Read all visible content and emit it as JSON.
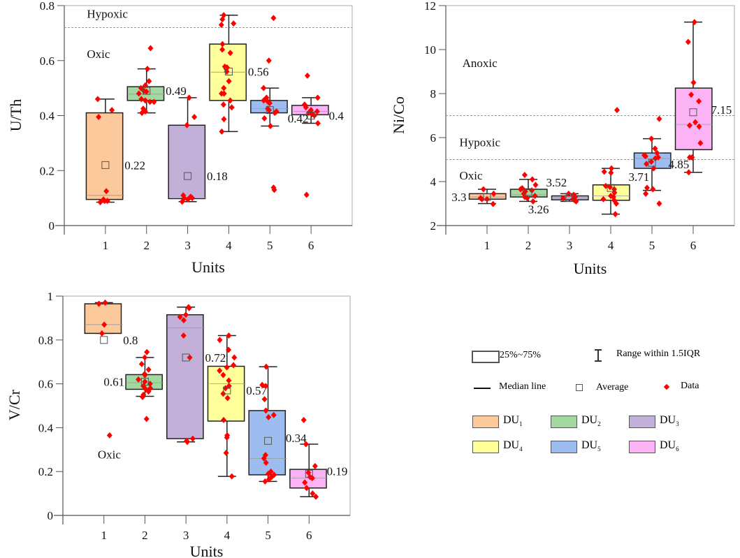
{
  "chart_data": [
    {
      "type": "box",
      "id": "uth",
      "ylabel": "U/Th",
      "xlabel": "Units",
      "categories": [
        "1",
        "2",
        "3",
        "4",
        "5",
        "6"
      ],
      "xlim": [
        0,
        7
      ],
      "ylim": [
        0,
        0.8
      ],
      "yticks": [
        0,
        0.2,
        0.4,
        0.6,
        0.8
      ],
      "ytick_labels": [
        "0",
        "0.2",
        "0.4",
        "0.6",
        "0.8"
      ],
      "thresholds": [
        0.72
      ],
      "zones": [
        {
          "label": "Hypoxic",
          "x": 0.55,
          "y": 0.755
        },
        {
          "label": "Oxic",
          "x": 0.55,
          "y": 0.61
        }
      ],
      "boxes": [
        {
          "unit": "DU1",
          "q1": 0.095,
          "q3": 0.41,
          "median": 0.11,
          "mean": 0.22,
          "whisker_low": 0.085,
          "whisker_high": 0.46,
          "mean_label": "0.22",
          "points": [
            0.46,
            0.42,
            0.395,
            0.125,
            0.095,
            0.09,
            0.09,
            0.085
          ]
        },
        {
          "unit": "DU2",
          "q1": 0.455,
          "q3": 0.505,
          "median": 0.478,
          "mean": 0.49,
          "whisker_low": 0.41,
          "whisker_high": 0.57,
          "mean_label": "0.49",
          "points": [
            0.645,
            0.57,
            0.525,
            0.51,
            0.5,
            0.49,
            0.487,
            0.48,
            0.46,
            0.455,
            0.45,
            0.45,
            0.425,
            0.415,
            0.41
          ]
        },
        {
          "unit": "DU3",
          "q1": 0.098,
          "q3": 0.365,
          "median": 0.1,
          "mean": 0.18,
          "whisker_low": 0.087,
          "whisker_high": 0.465,
          "mean_label": "0.18",
          "points": [
            0.465,
            0.395,
            0.365,
            0.11,
            0.105,
            0.1,
            0.1,
            0.095,
            0.087
          ]
        },
        {
          "unit": "DU4",
          "q1": 0.455,
          "q3": 0.66,
          "median": 0.558,
          "mean": 0.56,
          "whisker_low": 0.342,
          "whisker_high": 0.765,
          "mean_label": "0.56",
          "points": [
            0.765,
            0.75,
            0.735,
            0.73,
            0.66,
            0.64,
            0.628,
            0.578,
            0.575,
            0.57,
            0.56,
            0.525,
            0.5,
            0.48,
            0.48,
            0.455,
            0.44,
            0.43,
            0.387,
            0.342
          ]
        },
        {
          "unit": "DU5",
          "q1": 0.41,
          "q3": 0.455,
          "median": 0.425,
          "mean": 0.42,
          "whisker_low": 0.362,
          "whisker_high": 0.5,
          "mean_label": "0.42",
          "points": [
            0.755,
            0.6,
            0.5,
            0.465,
            0.455,
            0.45,
            0.445,
            0.425,
            0.42,
            0.415,
            0.41,
            0.39,
            0.362,
            0.138,
            0.13
          ]
        },
        {
          "unit": "DU6",
          "q1": 0.403,
          "q3": 0.437,
          "median": 0.415,
          "mean": 0.4,
          "whisker_low": 0.372,
          "whisker_high": 0.465,
          "mean_label": "0.4",
          "points": [
            0.545,
            0.465,
            0.44,
            0.43,
            0.42,
            0.415,
            0.41,
            0.405,
            0.4,
            0.372,
            0.112
          ]
        }
      ]
    },
    {
      "type": "box",
      "id": "nico",
      "ylabel": "Ni/Co",
      "xlabel": "Units",
      "categories": [
        "1",
        "2",
        "3",
        "4",
        "5",
        "6"
      ],
      "xlim": [
        0,
        7
      ],
      "ylim": [
        2,
        12
      ],
      "yticks": [
        2,
        4,
        6,
        8,
        10,
        12
      ],
      "ytick_labels": [
        "2",
        "4",
        "6",
        "8",
        "10",
        "12"
      ],
      "thresholds": [
        5,
        7
      ],
      "zones": [
        {
          "label": "Anoxic",
          "x": 0.4,
          "y": 9.2
        },
        {
          "label": "Hypoxic",
          "x": 0.33,
          "y": 5.6
        },
        {
          "label": "Oxic",
          "x": 0.33,
          "y": 4.1
        }
      ],
      "boxes": [
        {
          "unit": "DU1",
          "q1": 3.2,
          "q3": 3.45,
          "median": 3.3,
          "mean": 3.3,
          "whisker_low": 3.0,
          "whisker_high": 3.65,
          "mean_label": "3.3",
          "points": [
            3.65,
            3.45,
            3.25,
            3.2,
            3.2,
            2.98
          ]
        },
        {
          "unit": "DU2",
          "q1": 3.3,
          "q3": 3.65,
          "median": 3.4,
          "mean": 3.52,
          "whisker_low": 3.1,
          "whisker_high": 4.1,
          "mean_label": "3.52",
          "points": [
            4.3,
            4.1,
            3.85,
            3.7,
            3.65,
            3.6,
            3.55,
            3.45,
            3.35,
            3.3,
            3.25,
            3.1
          ]
        },
        {
          "unit": "DU3",
          "q1": 3.17,
          "q3": 3.35,
          "median": 3.25,
          "mean": 3.26,
          "whisker_low": 3.1,
          "whisker_high": 3.45,
          "mean_label": "3.26",
          "points": [
            3.45,
            3.4,
            3.35,
            3.3,
            3.25,
            3.2,
            3.15,
            3.1
          ]
        },
        {
          "unit": "DU4",
          "q1": 3.15,
          "q3": 3.85,
          "median": 3.35,
          "mean": 3.71,
          "whisker_low": 2.52,
          "whisker_high": 4.6,
          "mean_label": "3.71",
          "points": [
            7.25,
            4.6,
            4.45,
            4.4,
            3.8,
            3.75,
            3.65,
            3.5,
            3.35,
            3.3,
            3.2,
            3.15,
            3.0,
            2.52
          ]
        },
        {
          "unit": "DU5",
          "q1": 4.6,
          "q3": 5.3,
          "median": 5.05,
          "mean": 4.85,
          "whisker_low": 3.6,
          "whisker_high": 5.95,
          "mean_label": "4.85",
          "points": [
            6.85,
            5.95,
            5.5,
            5.3,
            5.2,
            5.15,
            5.1,
            5.05,
            4.9,
            4.8,
            4.6,
            3.72,
            3.65,
            3.45,
            3.0
          ]
        },
        {
          "unit": "DU6",
          "q1": 5.45,
          "q3": 8.25,
          "median": 6.6,
          "mean": 7.15,
          "whisker_low": 4.42,
          "whisker_high": 11.25,
          "mean_label": "7.15",
          "points": [
            11.25,
            10.35,
            8.5,
            7.95,
            7.65,
            6.7,
            6.55,
            6.5,
            5.75,
            5.1,
            5.1,
            4.42
          ]
        }
      ]
    },
    {
      "type": "box",
      "id": "vcr",
      "ylabel": "V/Cr",
      "xlabel": "Units",
      "categories": [
        "1",
        "2",
        "3",
        "4",
        "5",
        "6"
      ],
      "xlim": [
        0,
        7
      ],
      "ylim": [
        0,
        1
      ],
      "yticks": [
        0,
        0.2,
        0.4,
        0.6,
        0.8,
        1
      ],
      "ytick_labels": [
        "0",
        "0.2",
        "0.4",
        "0.6",
        "0.8",
        "1"
      ],
      "thresholds": [],
      "zones": [
        {
          "label": "Oxic",
          "x": 0.85,
          "y": 0.26
        }
      ],
      "boxes": [
        {
          "unit": "DU1",
          "q1": 0.83,
          "q3": 0.965,
          "median": 0.87,
          "mean": 0.8,
          "whisker_low": 0.83,
          "whisker_high": 0.97,
          "mean_label": "0.8",
          "points": [
            0.97,
            0.965,
            0.87,
            0.83,
            0.365
          ]
        },
        {
          "unit": "DU2",
          "q1": 0.575,
          "q3": 0.642,
          "median": 0.605,
          "mean": 0.61,
          "whisker_low": 0.543,
          "whisker_high": 0.72,
          "mean_label": "0.61",
          "points": [
            0.745,
            0.72,
            0.69,
            0.665,
            0.645,
            0.64,
            0.62,
            0.61,
            0.6,
            0.59,
            0.58,
            0.575,
            0.565,
            0.55,
            0.54,
            0.44
          ]
        },
        {
          "unit": "DU3",
          "q1": 0.35,
          "q3": 0.915,
          "median": 0.855,
          "mean": 0.72,
          "whisker_low": 0.335,
          "whisker_high": 0.95,
          "mean_label": "0.72",
          "points": [
            0.95,
            0.945,
            0.915,
            0.905,
            0.89,
            0.82,
            0.72,
            0.35,
            0.34,
            0.335
          ]
        },
        {
          "unit": "DU4",
          "q1": 0.43,
          "q3": 0.68,
          "median": 0.6,
          "mean": 0.57,
          "whisker_low": 0.178,
          "whisker_high": 0.82,
          "mean_label": "0.57",
          "points": [
            0.82,
            0.8,
            0.755,
            0.72,
            0.685,
            0.675,
            0.66,
            0.64,
            0.615,
            0.59,
            0.58,
            0.555,
            0.535,
            0.435,
            0.365,
            0.355,
            0.285,
            0.178
          ]
        },
        {
          "unit": "DU5",
          "q1": 0.185,
          "q3": 0.478,
          "median": 0.26,
          "mean": 0.34,
          "whisker_low": 0.155,
          "whisker_high": 0.678,
          "mean_label": "0.34",
          "points": [
            0.678,
            0.595,
            0.59,
            0.53,
            0.478,
            0.458,
            0.448,
            0.275,
            0.26,
            0.24,
            0.2,
            0.19,
            0.185,
            0.175,
            0.165,
            0.155
          ]
        },
        {
          "unit": "DU6",
          "q1": 0.125,
          "q3": 0.21,
          "median": 0.17,
          "mean": 0.19,
          "whisker_low": 0.085,
          "whisker_high": 0.325,
          "mean_label": "0.19",
          "points": [
            0.435,
            0.325,
            0.225,
            0.195,
            0.175,
            0.17,
            0.15,
            0.125,
            0.1,
            0.085
          ]
        }
      ]
    }
  ],
  "colors": {
    "DU1": "#fcc99c",
    "DU2": "#a2d9a0",
    "DU3": "#c3b0d8",
    "DU4": "#ffff9c",
    "DU5": "#9dbcf0",
    "DU6": "#fcb3f6",
    "data": "#ff0000",
    "threshold": "#999999"
  },
  "legend": {
    "box_label": "25%~75%",
    "range_label": "Range within 1.5IQR",
    "median_label": "Median line",
    "average_label": "Average",
    "data_label": "Data",
    "units": [
      {
        "key": "DU1",
        "base": "DU",
        "sub": "1"
      },
      {
        "key": "DU2",
        "base": "DU",
        "sub": "2"
      },
      {
        "key": "DU3",
        "base": "DU",
        "sub": "3"
      },
      {
        "key": "DU4",
        "base": "DU",
        "sub": "4"
      },
      {
        "key": "DU5",
        "base": "DU",
        "sub": "5"
      },
      {
        "key": "DU6",
        "base": "DU",
        "sub": "6"
      }
    ]
  }
}
